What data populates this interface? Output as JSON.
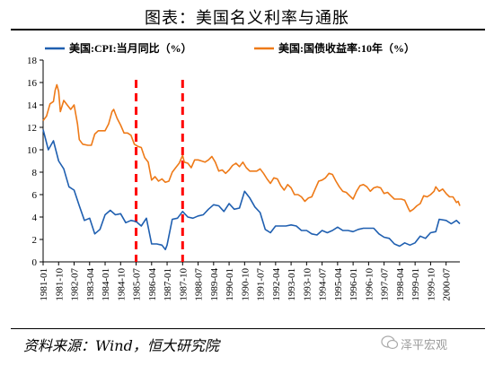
{
  "header": {
    "title": "图表：美国名义利率与通胀"
  },
  "footer": {
    "source": "资料来源：Wind，恒大研究院",
    "watermark": "泽平宏观",
    "watermark_icon": "wechat-icon"
  },
  "chart_data": {
    "type": "line",
    "title": "图表：美国名义利率与通胀",
    "xlabel": "",
    "ylabel": "",
    "ylim": [
      0,
      18
    ],
    "yticks": [
      0,
      2,
      4,
      6,
      8,
      10,
      12,
      14,
      16,
      18
    ],
    "xlim": [
      "1981-01",
      "2001-03"
    ],
    "xticks": [
      "1981-01",
      "1981-10",
      "1982-07",
      "1983-04",
      "1984-01",
      "1984-10",
      "1985-07",
      "1986-04",
      "1987-01",
      "1987-10",
      "1988-07",
      "1989-04",
      "1990-01",
      "1990-10",
      "1991-07",
      "1992-04",
      "1993-01",
      "1993-10",
      "1994-07",
      "1995-04",
      "1996-01",
      "1996-10",
      "1997-07",
      "1998-04",
      "1999-01",
      "1999-10",
      "2000-07"
    ],
    "grid": false,
    "legend_position": "top",
    "annotations": [
      {
        "type": "vertical-dashed-line",
        "x": "1985-07",
        "color": "#ff0000"
      },
      {
        "type": "vertical-dashed-line",
        "x": "1987-10",
        "color": "#ff0000"
      }
    ],
    "series": [
      {
        "name": "美国:CPI:当月同比（%）",
        "color": "#1f5fb0",
        "points": [
          [
            "1981-01",
            11.8
          ],
          [
            "1981-04",
            10.0
          ],
          [
            "1981-07",
            10.8
          ],
          [
            "1981-10",
            9.0
          ],
          [
            "1982-01",
            8.3
          ],
          [
            "1982-04",
            6.7
          ],
          [
            "1982-07",
            6.4
          ],
          [
            "1982-10",
            5.0
          ],
          [
            "1983-01",
            3.7
          ],
          [
            "1983-04",
            3.9
          ],
          [
            "1983-07",
            2.5
          ],
          [
            "1983-10",
            2.9
          ],
          [
            "1984-01",
            4.2
          ],
          [
            "1984-04",
            4.6
          ],
          [
            "1984-07",
            4.2
          ],
          [
            "1984-10",
            4.3
          ],
          [
            "1985-01",
            3.5
          ],
          [
            "1985-04",
            3.7
          ],
          [
            "1985-07",
            3.6
          ],
          [
            "1985-10",
            3.2
          ],
          [
            "1986-01",
            3.9
          ],
          [
            "1986-04",
            1.6
          ],
          [
            "1986-07",
            1.6
          ],
          [
            "1986-10",
            1.5
          ],
          [
            "1986-12",
            1.1
          ],
          [
            "1987-01",
            1.5
          ],
          [
            "1987-04",
            3.8
          ],
          [
            "1987-07",
            3.9
          ],
          [
            "1987-10",
            4.5
          ],
          [
            "1988-01",
            4.0
          ],
          [
            "1988-04",
            3.9
          ],
          [
            "1988-07",
            4.1
          ],
          [
            "1988-10",
            4.2
          ],
          [
            "1989-01",
            4.7
          ],
          [
            "1989-04",
            5.1
          ],
          [
            "1989-07",
            5.0
          ],
          [
            "1989-10",
            4.5
          ],
          [
            "1990-01",
            5.2
          ],
          [
            "1990-04",
            4.7
          ],
          [
            "1990-07",
            4.8
          ],
          [
            "1990-10",
            6.3
          ],
          [
            "1991-01",
            5.7
          ],
          [
            "1991-04",
            4.9
          ],
          [
            "1991-07",
            4.4
          ],
          [
            "1991-10",
            2.9
          ],
          [
            "1992-01",
            2.6
          ],
          [
            "1992-04",
            3.2
          ],
          [
            "1992-07",
            3.2
          ],
          [
            "1992-10",
            3.2
          ],
          [
            "1993-01",
            3.3
          ],
          [
            "1993-04",
            3.2
          ],
          [
            "1993-07",
            2.8
          ],
          [
            "1993-10",
            2.8
          ],
          [
            "1994-01",
            2.5
          ],
          [
            "1994-04",
            2.4
          ],
          [
            "1994-07",
            2.8
          ],
          [
            "1994-10",
            2.6
          ],
          [
            "1995-01",
            2.8
          ],
          [
            "1995-04",
            3.1
          ],
          [
            "1995-07",
            2.8
          ],
          [
            "1995-10",
            2.8
          ],
          [
            "1996-01",
            2.7
          ],
          [
            "1996-04",
            2.9
          ],
          [
            "1996-07",
            3.0
          ],
          [
            "1996-10",
            3.0
          ],
          [
            "1997-01",
            3.0
          ],
          [
            "1997-04",
            2.5
          ],
          [
            "1997-07",
            2.2
          ],
          [
            "1997-10",
            2.1
          ],
          [
            "1998-01",
            1.6
          ],
          [
            "1998-04",
            1.4
          ],
          [
            "1998-07",
            1.7
          ],
          [
            "1998-10",
            1.5
          ],
          [
            "1999-01",
            1.7
          ],
          [
            "1999-04",
            2.3
          ],
          [
            "1999-07",
            2.1
          ],
          [
            "1999-10",
            2.6
          ],
          [
            "2000-01",
            2.7
          ],
          [
            "2000-03",
            3.8
          ],
          [
            "2000-07",
            3.7
          ],
          [
            "2000-10",
            3.4
          ],
          [
            "2001-01",
            3.7
          ],
          [
            "2001-03",
            3.4
          ]
        ]
      },
      {
        "name": "美国:国债收益率:10年（%）",
        "color": "#ee7a18",
        "points": [
          [
            "1981-01",
            12.6
          ],
          [
            "1981-03",
            13.0
          ],
          [
            "1981-05",
            14.1
          ],
          [
            "1981-07",
            14.3
          ],
          [
            "1981-08",
            15.3
          ],
          [
            "1981-09",
            15.8
          ],
          [
            "1981-10",
            15.2
          ],
          [
            "1981-11",
            13.4
          ],
          [
            "1982-01",
            14.4
          ],
          [
            "1982-03",
            14.0
          ],
          [
            "1982-05",
            13.6
          ],
          [
            "1982-07",
            14.0
          ],
          [
            "1982-09",
            12.3
          ],
          [
            "1982-10",
            10.9
          ],
          [
            "1982-12",
            10.5
          ],
          [
            "1983-03",
            10.4
          ],
          [
            "1983-05",
            10.4
          ],
          [
            "1983-07",
            11.4
          ],
          [
            "1983-09",
            11.7
          ],
          [
            "1983-11",
            11.7
          ],
          [
            "1984-01",
            11.7
          ],
          [
            "1984-03",
            12.3
          ],
          [
            "1984-05",
            13.4
          ],
          [
            "1984-06",
            13.6
          ],
          [
            "1984-08",
            12.8
          ],
          [
            "1984-10",
            12.2
          ],
          [
            "1984-12",
            11.5
          ],
          [
            "1985-02",
            11.5
          ],
          [
            "1985-04",
            11.3
          ],
          [
            "1985-06",
            10.5
          ],
          [
            "1985-08",
            10.3
          ],
          [
            "1985-10",
            10.2
          ],
          [
            "1985-12",
            9.3
          ],
          [
            "1986-02",
            8.9
          ],
          [
            "1986-04",
            7.3
          ],
          [
            "1986-06",
            7.6
          ],
          [
            "1986-08",
            7.2
          ],
          [
            "1986-10",
            7.4
          ],
          [
            "1986-12",
            7.1
          ],
          [
            "1987-02",
            7.2
          ],
          [
            "1987-04",
            8.0
          ],
          [
            "1987-06",
            8.4
          ],
          [
            "1987-08",
            8.8
          ],
          [
            "1987-10",
            9.5
          ],
          [
            "1987-11",
            8.9
          ],
          [
            "1988-01",
            8.8
          ],
          [
            "1988-03",
            8.4
          ],
          [
            "1988-05",
            9.1
          ],
          [
            "1988-07",
            9.1
          ],
          [
            "1988-09",
            9.0
          ],
          [
            "1988-11",
            8.9
          ],
          [
            "1989-01",
            9.1
          ],
          [
            "1989-03",
            9.4
          ],
          [
            "1989-05",
            8.9
          ],
          [
            "1989-07",
            8.1
          ],
          [
            "1989-09",
            8.2
          ],
          [
            "1989-11",
            7.9
          ],
          [
            "1990-01",
            8.2
          ],
          [
            "1990-03",
            8.6
          ],
          [
            "1990-05",
            8.8
          ],
          [
            "1990-07",
            8.5
          ],
          [
            "1990-09",
            8.9
          ],
          [
            "1990-11",
            8.4
          ],
          [
            "1991-01",
            8.1
          ],
          [
            "1991-03",
            8.1
          ],
          [
            "1991-05",
            8.1
          ],
          [
            "1991-07",
            8.3
          ],
          [
            "1991-09",
            7.9
          ],
          [
            "1991-11",
            7.4
          ],
          [
            "1992-01",
            7.0
          ],
          [
            "1992-03",
            7.5
          ],
          [
            "1992-05",
            7.4
          ],
          [
            "1992-07",
            6.8
          ],
          [
            "1992-09",
            6.4
          ],
          [
            "1992-11",
            6.9
          ],
          [
            "1993-01",
            6.6
          ],
          [
            "1993-03",
            6.0
          ],
          [
            "1993-05",
            6.0
          ],
          [
            "1993-07",
            5.8
          ],
          [
            "1993-09",
            5.4
          ],
          [
            "1993-11",
            5.7
          ],
          [
            "1994-01",
            5.8
          ],
          [
            "1994-03",
            6.5
          ],
          [
            "1994-05",
            7.2
          ],
          [
            "1994-07",
            7.3
          ],
          [
            "1994-09",
            7.5
          ],
          [
            "1994-11",
            7.9
          ],
          [
            "1995-01",
            7.8
          ],
          [
            "1995-03",
            7.2
          ],
          [
            "1995-05",
            6.7
          ],
          [
            "1995-07",
            6.3
          ],
          [
            "1995-09",
            6.2
          ],
          [
            "1995-11",
            5.9
          ],
          [
            "1996-01",
            5.6
          ],
          [
            "1996-03",
            6.3
          ],
          [
            "1996-05",
            6.8
          ],
          [
            "1996-07",
            6.9
          ],
          [
            "1996-09",
            6.7
          ],
          [
            "1996-11",
            6.3
          ],
          [
            "1997-01",
            6.6
          ],
          [
            "1997-03",
            6.7
          ],
          [
            "1997-05",
            6.6
          ],
          [
            "1997-07",
            6.1
          ],
          [
            "1997-09",
            6.2
          ],
          [
            "1997-11",
            5.9
          ],
          [
            "1998-01",
            5.6
          ],
          [
            "1998-03",
            5.6
          ],
          [
            "1998-05",
            5.6
          ],
          [
            "1998-07",
            5.5
          ],
          [
            "1998-09",
            4.8
          ],
          [
            "1998-10",
            4.5
          ],
          [
            "1998-12",
            4.7
          ],
          [
            "1999-02",
            5.0
          ],
          [
            "1999-04",
            5.2
          ],
          [
            "1999-06",
            5.9
          ],
          [
            "1999-08",
            5.8
          ],
          [
            "1999-10",
            6.0
          ],
          [
            "1999-12",
            6.3
          ],
          [
            "2000-01",
            6.7
          ],
          [
            "2000-03",
            6.3
          ],
          [
            "2000-05",
            6.5
          ],
          [
            "2000-07",
            6.1
          ],
          [
            "2000-09",
            5.8
          ],
          [
            "2000-11",
            5.8
          ],
          [
            "2001-01",
            5.3
          ],
          [
            "2001-02",
            5.4
          ],
          [
            "2001-03",
            5.0
          ]
        ]
      }
    ]
  }
}
